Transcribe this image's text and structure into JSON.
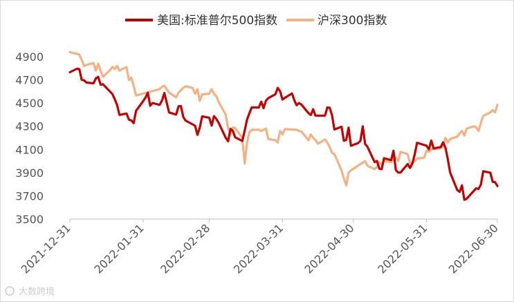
{
  "chart_data": {
    "type": "line",
    "title": "",
    "xlabel": "",
    "ylabel": "",
    "ylim": [
      3500,
      4900
    ],
    "yticks": [
      3500,
      3700,
      3900,
      4100,
      4300,
      4500,
      4700,
      4900
    ],
    "xticks": [
      "2021-12-31",
      "2022-01-31",
      "2022-02-28",
      "2022-03-31",
      "2022-04-30",
      "2022-05-31",
      "2022-06-30"
    ],
    "xlim": [
      "2021-12-31",
      "2022-06-30"
    ],
    "grid": false,
    "legend_position": "top",
    "series": [
      {
        "name": "美国:标准普尔500指数",
        "color": "#c00000",
        "points": [
          [
            "2021-12-31",
            4766
          ],
          [
            "2022-01-03",
            4796
          ],
          [
            "2022-01-04",
            4793
          ],
          [
            "2022-01-05",
            4701
          ],
          [
            "2022-01-06",
            4696
          ],
          [
            "2022-01-07",
            4677
          ],
          [
            "2022-01-10",
            4670
          ],
          [
            "2022-01-11",
            4713
          ],
          [
            "2022-01-12",
            4726
          ],
          [
            "2022-01-13",
            4659
          ],
          [
            "2022-01-14",
            4663
          ],
          [
            "2022-01-18",
            4577
          ],
          [
            "2022-01-19",
            4533
          ],
          [
            "2022-01-20",
            4483
          ],
          [
            "2022-01-21",
            4398
          ],
          [
            "2022-01-24",
            4410
          ],
          [
            "2022-01-25",
            4357
          ],
          [
            "2022-01-26",
            4350
          ],
          [
            "2022-01-27",
            4327
          ],
          [
            "2022-01-28",
            4432
          ],
          [
            "2022-01-31",
            4516
          ],
          [
            "2022-02-01",
            4546
          ],
          [
            "2022-02-02",
            4589
          ],
          [
            "2022-02-03",
            4477
          ],
          [
            "2022-02-04",
            4501
          ],
          [
            "2022-02-07",
            4484
          ],
          [
            "2022-02-08",
            4522
          ],
          [
            "2022-02-09",
            4587
          ],
          [
            "2022-02-10",
            4504
          ],
          [
            "2022-02-11",
            4419
          ],
          [
            "2022-02-14",
            4401
          ],
          [
            "2022-02-15",
            4472
          ],
          [
            "2022-02-16",
            4475
          ],
          [
            "2022-02-17",
            4381
          ],
          [
            "2022-02-18",
            4349
          ],
          [
            "2022-02-22",
            4305
          ],
          [
            "2022-02-23",
            4226
          ],
          [
            "2022-02-24",
            4288
          ],
          [
            "2022-02-25",
            4385
          ],
          [
            "2022-02-28",
            4374
          ],
          [
            "2022-03-01",
            4306
          ],
          [
            "2022-03-02",
            4387
          ],
          [
            "2022-03-03",
            4363
          ],
          [
            "2022-03-04",
            4329
          ],
          [
            "2022-03-07",
            4201
          ],
          [
            "2022-03-08",
            4171
          ],
          [
            "2022-03-09",
            4278
          ],
          [
            "2022-03-10",
            4260
          ],
          [
            "2022-03-11",
            4204
          ],
          [
            "2022-03-14",
            4173
          ],
          [
            "2022-03-15",
            4262
          ],
          [
            "2022-03-16",
            4357
          ],
          [
            "2022-03-17",
            4412
          ],
          [
            "2022-03-18",
            4463
          ],
          [
            "2022-03-21",
            4461
          ],
          [
            "2022-03-22",
            4512
          ],
          [
            "2022-03-23",
            4456
          ],
          [
            "2022-03-24",
            4520
          ],
          [
            "2022-03-25",
            4543
          ],
          [
            "2022-03-28",
            4575
          ],
          [
            "2022-03-29",
            4631
          ],
          [
            "2022-03-30",
            4602
          ],
          [
            "2022-03-31",
            4530
          ],
          [
            "2022-04-01",
            4545
          ],
          [
            "2022-04-04",
            4583
          ],
          [
            "2022-04-05",
            4525
          ],
          [
            "2022-04-06",
            4481
          ],
          [
            "2022-04-07",
            4500
          ],
          [
            "2022-04-08",
            4488
          ],
          [
            "2022-04-11",
            4413
          ],
          [
            "2022-04-12",
            4397
          ],
          [
            "2022-04-13",
            4447
          ],
          [
            "2022-04-14",
            4392
          ],
          [
            "2022-04-18",
            4392
          ],
          [
            "2022-04-19",
            4463
          ],
          [
            "2022-04-20",
            4459
          ],
          [
            "2022-04-21",
            4394
          ],
          [
            "2022-04-22",
            4272
          ],
          [
            "2022-04-25",
            4296
          ],
          [
            "2022-04-26",
            4175
          ],
          [
            "2022-04-27",
            4183
          ],
          [
            "2022-04-28",
            4288
          ],
          [
            "2022-04-29",
            4132
          ],
          [
            "2022-05-02",
            4155
          ],
          [
            "2022-05-03",
            4175
          ],
          [
            "2022-05-04",
            4300
          ],
          [
            "2022-05-05",
            4147
          ],
          [
            "2022-05-06",
            4123
          ],
          [
            "2022-05-09",
            3991
          ],
          [
            "2022-05-10",
            4001
          ],
          [
            "2022-05-11",
            3935
          ],
          [
            "2022-05-12",
            3930
          ],
          [
            "2022-05-13",
            4024
          ],
          [
            "2022-05-16",
            4008
          ],
          [
            "2022-05-17",
            4089
          ],
          [
            "2022-05-18",
            3923
          ],
          [
            "2022-05-19",
            3901
          ],
          [
            "2022-05-20",
            3901
          ],
          [
            "2022-05-23",
            3974
          ],
          [
            "2022-05-24",
            3941
          ],
          [
            "2022-05-25",
            3979
          ],
          [
            "2022-05-26",
            4058
          ],
          [
            "2022-05-27",
            4158
          ],
          [
            "2022-05-31",
            4132
          ],
          [
            "2022-06-01",
            4101
          ],
          [
            "2022-06-02",
            4177
          ],
          [
            "2022-06-03",
            4109
          ],
          [
            "2022-06-06",
            4121
          ],
          [
            "2022-06-07",
            4161
          ],
          [
            "2022-06-08",
            4116
          ],
          [
            "2022-06-09",
            4018
          ],
          [
            "2022-06-10",
            3901
          ],
          [
            "2022-06-13",
            3750
          ],
          [
            "2022-06-14",
            3735
          ],
          [
            "2022-06-15",
            3790
          ],
          [
            "2022-06-16",
            3667
          ],
          [
            "2022-06-17",
            3675
          ],
          [
            "2022-06-21",
            3765
          ],
          [
            "2022-06-22",
            3760
          ],
          [
            "2022-06-23",
            3796
          ],
          [
            "2022-06-24",
            3912
          ],
          [
            "2022-06-27",
            3900
          ],
          [
            "2022-06-28",
            3821
          ],
          [
            "2022-06-29",
            3819
          ],
          [
            "2022-06-30",
            3785
          ]
        ]
      },
      {
        "name": "沪深300指数",
        "color": "#f4b183",
        "points": [
          [
            "2021-12-31",
            4940
          ],
          [
            "2022-01-04",
            4917
          ],
          [
            "2022-01-05",
            4874
          ],
          [
            "2022-01-06",
            4818
          ],
          [
            "2022-01-07",
            4829
          ],
          [
            "2022-01-10",
            4844
          ],
          [
            "2022-01-11",
            4780
          ],
          [
            "2022-01-12",
            4840
          ],
          [
            "2022-01-13",
            4778
          ],
          [
            "2022-01-14",
            4726
          ],
          [
            "2022-01-17",
            4783
          ],
          [
            "2022-01-18",
            4812
          ],
          [
            "2022-01-19",
            4794
          ],
          [
            "2022-01-20",
            4820
          ],
          [
            "2022-01-21",
            4780
          ],
          [
            "2022-01-24",
            4810
          ],
          [
            "2022-01-25",
            4698
          ],
          [
            "2022-01-26",
            4720
          ],
          [
            "2022-01-27",
            4650
          ],
          [
            "2022-01-28",
            4565
          ],
          [
            "2022-02-07",
            4620
          ],
          [
            "2022-02-08",
            4640
          ],
          [
            "2022-02-09",
            4650
          ],
          [
            "2022-02-10",
            4620
          ],
          [
            "2022-02-11",
            4590
          ],
          [
            "2022-02-14",
            4550
          ],
          [
            "2022-02-15",
            4590
          ],
          [
            "2022-02-16",
            4610
          ],
          [
            "2022-02-17",
            4630
          ],
          [
            "2022-02-18",
            4645
          ],
          [
            "2022-02-21",
            4630
          ],
          [
            "2022-02-22",
            4580
          ],
          [
            "2022-02-23",
            4620
          ],
          [
            "2022-02-24",
            4520
          ],
          [
            "2022-02-25",
            4575
          ],
          [
            "2022-02-28",
            4580
          ],
          [
            "2022-03-01",
            4620
          ],
          [
            "2022-03-02",
            4580
          ],
          [
            "2022-03-03",
            4560
          ],
          [
            "2022-03-04",
            4510
          ],
          [
            "2022-03-07",
            4400
          ],
          [
            "2022-03-08",
            4280
          ],
          [
            "2022-03-09",
            4230
          ],
          [
            "2022-03-10",
            4290
          ],
          [
            "2022-03-11",
            4285
          ],
          [
            "2022-03-14",
            4200
          ],
          [
            "2022-03-15",
            3980
          ],
          [
            "2022-03-16",
            4160
          ],
          [
            "2022-03-17",
            4250
          ],
          [
            "2022-03-18",
            4270
          ],
          [
            "2022-03-21",
            4270
          ],
          [
            "2022-03-22",
            4260
          ],
          [
            "2022-03-23",
            4270
          ],
          [
            "2022-03-24",
            4280
          ],
          [
            "2022-03-25",
            4190
          ],
          [
            "2022-03-28",
            4180
          ],
          [
            "2022-03-29",
            4160
          ],
          [
            "2022-03-30",
            4260
          ],
          [
            "2022-03-31",
            4230
          ],
          [
            "2022-04-01",
            4275
          ],
          [
            "2022-04-06",
            4270
          ],
          [
            "2022-04-07",
            4260
          ],
          [
            "2022-04-08",
            4255
          ],
          [
            "2022-04-11",
            4180
          ],
          [
            "2022-04-12",
            4230
          ],
          [
            "2022-04-13",
            4200
          ],
          [
            "2022-04-14",
            4180
          ],
          [
            "2022-04-15",
            4150
          ],
          [
            "2022-04-18",
            4185
          ],
          [
            "2022-04-19",
            4160
          ],
          [
            "2022-04-20",
            4120
          ],
          [
            "2022-04-21",
            4070
          ],
          [
            "2022-04-22",
            4060
          ],
          [
            "2022-04-25",
            3920
          ],
          [
            "2022-04-26",
            3850
          ],
          [
            "2022-04-27",
            3790
          ],
          [
            "2022-04-28",
            3900
          ],
          [
            "2022-04-29",
            3920
          ],
          [
            "2022-05-05",
            4000
          ],
          [
            "2022-05-06",
            3960
          ],
          [
            "2022-05-09",
            3930
          ],
          [
            "2022-05-10",
            3950
          ],
          [
            "2022-05-11",
            3990
          ],
          [
            "2022-05-12",
            3970
          ],
          [
            "2022-05-13",
            4000
          ],
          [
            "2022-05-16",
            3990
          ],
          [
            "2022-05-17",
            4020
          ],
          [
            "2022-05-18",
            4030
          ],
          [
            "2022-05-19",
            4000
          ],
          [
            "2022-05-20",
            4080
          ],
          [
            "2022-05-23",
            4060
          ],
          [
            "2022-05-24",
            3980
          ],
          [
            "2022-05-25",
            3985
          ],
          [
            "2022-05-26",
            4000
          ],
          [
            "2022-05-27",
            4020
          ],
          [
            "2022-05-30",
            4030
          ],
          [
            "2022-05-31",
            4090
          ],
          [
            "2022-06-01",
            4080
          ],
          [
            "2022-06-02",
            4100
          ],
          [
            "2022-06-06",
            4110
          ],
          [
            "2022-06-07",
            4130
          ],
          [
            "2022-06-08",
            4200
          ],
          [
            "2022-06-09",
            4160
          ],
          [
            "2022-06-10",
            4190
          ],
          [
            "2022-06-13",
            4210
          ],
          [
            "2022-06-14",
            4240
          ],
          [
            "2022-06-15",
            4260
          ],
          [
            "2022-06-16",
            4220
          ],
          [
            "2022-06-17",
            4280
          ],
          [
            "2022-06-20",
            4300
          ],
          [
            "2022-06-21",
            4290
          ],
          [
            "2022-06-22",
            4260
          ],
          [
            "2022-06-23",
            4330
          ],
          [
            "2022-06-24",
            4390
          ],
          [
            "2022-06-27",
            4420
          ],
          [
            "2022-06-28",
            4440
          ],
          [
            "2022-06-29",
            4420
          ],
          [
            "2022-06-30",
            4485
          ]
        ]
      }
    ]
  },
  "watermark": "大数跨境"
}
